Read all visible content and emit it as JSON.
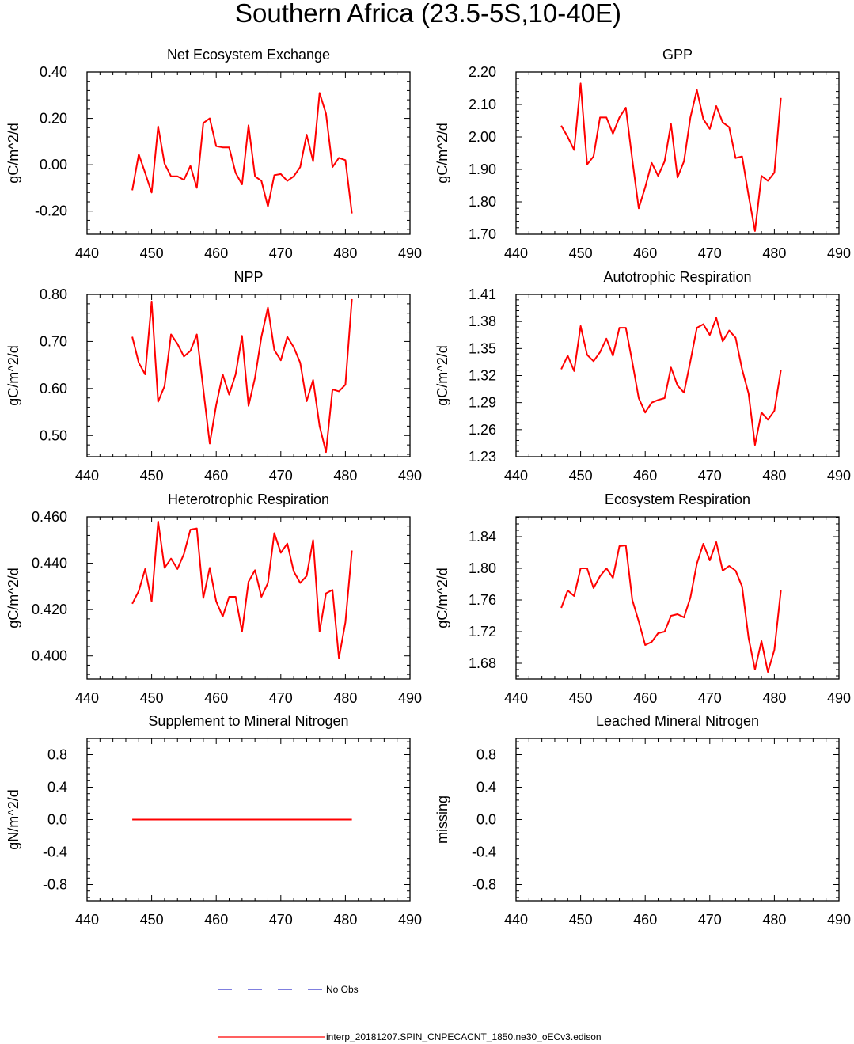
{
  "figure_title": "Southern Africa (23.5-5S,10-40E)",
  "legend": {
    "entries": [
      {
        "label": "No Obs",
        "style": "dashed",
        "color": "#3333cc"
      },
      {
        "label": "interp_20181207.SPIN_CNPECACNT_1850.ne30_oECv3.edison",
        "style": "solid",
        "color": "#ff0000"
      }
    ]
  },
  "colors": {
    "series": "#ff0000",
    "axis": "#000000",
    "obs": "#3333cc"
  },
  "chart_data": [
    {
      "type": "line",
      "title": "Net Ecosystem Exchange",
      "xlabel": "",
      "ylabel": "gC/m^2/d",
      "xlim": [
        440,
        490
      ],
      "ylim": [
        -0.3,
        0.4
      ],
      "xticks": [
        440,
        450,
        460,
        470,
        480,
        490
      ],
      "xtick_labels": [
        "440",
        "450",
        "460",
        "470",
        "480",
        "490"
      ],
      "yticks": [
        -0.2,
        0.0,
        0.2,
        0.4
      ],
      "ytick_labels": [
        "-0.20",
        "0.00",
        "0.20",
        "0.40"
      ],
      "series": [
        {
          "name": "interp_20181207.SPIN_CNPECACNT_1850.ne30_oECv3.edison",
          "x": [
            447,
            448,
            449,
            450,
            451,
            452,
            453,
            454,
            455,
            456,
            457,
            458,
            459,
            460,
            461,
            462,
            463,
            464,
            465,
            466,
            467,
            468,
            469,
            470,
            471,
            472,
            473,
            474,
            475,
            476,
            477,
            478,
            479,
            480,
            481
          ],
          "y": [
            -0.11,
            0.045,
            -0.035,
            -0.12,
            0.165,
            0.005,
            -0.05,
            -0.05,
            -0.065,
            -0.005,
            -0.1,
            0.18,
            0.2,
            0.08,
            0.075,
            0.075,
            -0.035,
            -0.085,
            0.17,
            -0.05,
            -0.07,
            -0.18,
            -0.045,
            -0.04,
            -0.07,
            -0.05,
            -0.01,
            0.13,
            0.015,
            0.31,
            0.22,
            -0.01,
            0.03,
            0.02,
            -0.21
          ]
        }
      ]
    },
    {
      "type": "line",
      "title": "GPP",
      "xlabel": "",
      "ylabel": "gC/m^2/d",
      "xlim": [
        440,
        490
      ],
      "ylim": [
        1.7,
        2.2
      ],
      "xticks": [
        440,
        450,
        460,
        470,
        480,
        490
      ],
      "xtick_labels": [
        "440",
        "450",
        "460",
        "470",
        "480",
        "490"
      ],
      "yticks": [
        1.7,
        1.8,
        1.9,
        2.0,
        2.1,
        2.2
      ],
      "ytick_labels": [
        "1.70",
        "1.80",
        "1.90",
        "2.00",
        "2.10",
        "2.20"
      ],
      "series": [
        {
          "name": "interp_20181207.SPIN_CNPECACNT_1850.ne30_oECv3.edison",
          "x": [
            447,
            448,
            449,
            450,
            451,
            452,
            453,
            454,
            455,
            456,
            457,
            458,
            459,
            460,
            461,
            462,
            463,
            464,
            465,
            466,
            467,
            468,
            469,
            470,
            471,
            472,
            473,
            474,
            475,
            476,
            477,
            478,
            479,
            480,
            481
          ],
          "y": [
            2.035,
            2.0,
            1.96,
            2.165,
            1.915,
            1.94,
            2.06,
            2.06,
            2.01,
            2.06,
            2.09,
            1.93,
            1.78,
            1.845,
            1.92,
            1.88,
            1.925,
            2.04,
            1.875,
            1.925,
            2.06,
            2.145,
            2.055,
            2.025,
            2.095,
            2.045,
            2.03,
            1.935,
            1.94,
            1.82,
            1.71,
            1.88,
            1.865,
            1.89,
            2.12
          ]
        }
      ]
    },
    {
      "type": "line",
      "title": "NPP",
      "xlabel": "",
      "ylabel": "gC/m^2/d",
      "xlim": [
        440,
        490
      ],
      "ylim": [
        0.455,
        0.8
      ],
      "xticks": [
        440,
        450,
        460,
        470,
        480,
        490
      ],
      "xtick_labels": [
        "440",
        "450",
        "460",
        "470",
        "480",
        "490"
      ],
      "yticks": [
        0.5,
        0.6,
        0.7,
        0.8
      ],
      "ytick_labels": [
        "0.50",
        "0.60",
        "0.70",
        "0.80"
      ],
      "series": [
        {
          "name": "interp_20181207.SPIN_CNPECACNT_1850.ne30_oECv3.edison",
          "x": [
            447,
            448,
            449,
            450,
            451,
            452,
            453,
            454,
            455,
            456,
            457,
            458,
            459,
            460,
            461,
            462,
            463,
            464,
            465,
            466,
            467,
            468,
            469,
            470,
            471,
            472,
            473,
            474,
            475,
            476,
            477,
            478,
            479,
            480,
            481
          ],
          "y": [
            0.71,
            0.655,
            0.63,
            0.785,
            0.572,
            0.605,
            0.715,
            0.695,
            0.668,
            0.68,
            0.715,
            0.598,
            0.483,
            0.565,
            0.63,
            0.587,
            0.63,
            0.712,
            0.563,
            0.623,
            0.71,
            0.772,
            0.682,
            0.66,
            0.71,
            0.688,
            0.655,
            0.573,
            0.618,
            0.52,
            0.465,
            0.598,
            0.594,
            0.608,
            0.79
          ]
        }
      ]
    },
    {
      "type": "line",
      "title": "Autotrophic Respiration",
      "xlabel": "",
      "ylabel": "gC/m^2/d",
      "xlim": [
        440,
        490
      ],
      "ylim": [
        1.23,
        1.41
      ],
      "xticks": [
        440,
        450,
        460,
        470,
        480,
        490
      ],
      "xtick_labels": [
        "440",
        "450",
        "460",
        "470",
        "480",
        "490"
      ],
      "yticks": [
        1.23,
        1.26,
        1.29,
        1.32,
        1.35,
        1.38,
        1.41
      ],
      "ytick_labels": [
        "1.23",
        "1.26",
        "1.29",
        "1.32",
        "1.35",
        "1.38",
        "1.41"
      ],
      "series": [
        {
          "name": "interp_20181207.SPIN_CNPECACNT_1850.ne30_oECv3.edison",
          "x": [
            447,
            448,
            449,
            450,
            451,
            452,
            453,
            454,
            455,
            456,
            457,
            458,
            459,
            460,
            461,
            462,
            463,
            464,
            465,
            466,
            467,
            468,
            469,
            470,
            471,
            472,
            473,
            474,
            475,
            476,
            477,
            478,
            479,
            480,
            481
          ],
          "y": [
            1.327,
            1.342,
            1.325,
            1.375,
            1.343,
            1.336,
            1.346,
            1.361,
            1.342,
            1.373,
            1.373,
            1.335,
            1.295,
            1.279,
            1.29,
            1.293,
            1.295,
            1.329,
            1.309,
            1.301,
            1.336,
            1.373,
            1.377,
            1.365,
            1.384,
            1.358,
            1.37,
            1.362,
            1.327,
            1.3,
            1.243,
            1.279,
            1.271,
            1.281,
            1.326
          ]
        }
      ]
    },
    {
      "type": "line",
      "title": "Heterotrophic Respiration",
      "xlabel": "",
      "ylabel": "gC/m^2/d",
      "xlim": [
        440,
        490
      ],
      "ylim": [
        0.39,
        0.46
      ],
      "xticks": [
        440,
        450,
        460,
        470,
        480,
        490
      ],
      "xtick_labels": [
        "440",
        "450",
        "460",
        "470",
        "480",
        "490"
      ],
      "yticks": [
        0.4,
        0.42,
        0.44,
        0.46
      ],
      "ytick_labels": [
        "0.400",
        "0.420",
        "0.440",
        "0.460"
      ],
      "series": [
        {
          "name": "interp_20181207.SPIN_CNPECACNT_1850.ne30_oECv3.edison",
          "x": [
            447,
            448,
            449,
            450,
            451,
            452,
            453,
            454,
            455,
            456,
            457,
            458,
            459,
            460,
            461,
            462,
            463,
            464,
            465,
            466,
            467,
            468,
            469,
            470,
            471,
            472,
            473,
            474,
            475,
            476,
            477,
            478,
            479,
            480,
            481
          ],
          "y": [
            0.4225,
            0.428,
            0.4375,
            0.4235,
            0.458,
            0.438,
            0.442,
            0.4375,
            0.444,
            0.4545,
            0.455,
            0.425,
            0.438,
            0.4235,
            0.417,
            0.4255,
            0.4255,
            0.4105,
            0.432,
            0.437,
            0.4255,
            0.4315,
            0.453,
            0.4445,
            0.4485,
            0.4365,
            0.4315,
            0.4345,
            0.45,
            0.4105,
            0.427,
            0.4285,
            0.399,
            0.4145,
            0.4455
          ]
        }
      ]
    },
    {
      "type": "line",
      "title": "Ecosystem Respiration",
      "xlabel": "",
      "ylabel": "gC/m^2/d",
      "xlim": [
        440,
        490
      ],
      "ylim": [
        1.66,
        1.865
      ],
      "xticks": [
        440,
        450,
        460,
        470,
        480,
        490
      ],
      "xtick_labels": [
        "440",
        "450",
        "460",
        "470",
        "480",
        "490"
      ],
      "yticks": [
        1.68,
        1.72,
        1.76,
        1.8,
        1.84
      ],
      "ytick_labels": [
        "1.68",
        "1.72",
        "1.76",
        "1.80",
        "1.84"
      ],
      "series": [
        {
          "name": "interp_20181207.SPIN_CNPECACNT_1850.ne30_oECv3.edison",
          "x": [
            447,
            448,
            449,
            450,
            451,
            452,
            453,
            454,
            455,
            456,
            457,
            458,
            459,
            460,
            461,
            462,
            463,
            464,
            465,
            466,
            467,
            468,
            469,
            470,
            471,
            472,
            473,
            474,
            475,
            476,
            477,
            478,
            479,
            480,
            481
          ],
          "y": [
            1.75,
            1.772,
            1.765,
            1.8,
            1.8,
            1.775,
            1.79,
            1.8,
            1.788,
            1.828,
            1.829,
            1.76,
            1.733,
            1.703,
            1.707,
            1.718,
            1.72,
            1.74,
            1.742,
            1.738,
            1.763,
            1.806,
            1.831,
            1.81,
            1.833,
            1.797,
            1.803,
            1.797,
            1.777,
            1.712,
            1.672,
            1.708,
            1.669,
            1.697,
            1.772
          ]
        }
      ]
    },
    {
      "type": "line",
      "title": "Supplement to Mineral Nitrogen",
      "xlabel": "",
      "ylabel": "gN/m^2/d",
      "xlim": [
        440,
        490
      ],
      "ylim": [
        -1.0,
        1.0
      ],
      "xticks": [
        440,
        450,
        460,
        470,
        480,
        490
      ],
      "xtick_labels": [
        "440",
        "450",
        "460",
        "470",
        "480",
        "490"
      ],
      "yticks": [
        -0.8,
        -0.4,
        0.0,
        0.4,
        0.8
      ],
      "ytick_labels": [
        "-0.8",
        "-0.4",
        "0.0",
        "0.4",
        "0.8"
      ],
      "series": [
        {
          "name": "interp_20181207.SPIN_CNPECACNT_1850.ne30_oECv3.edison",
          "x": [
            447,
            481
          ],
          "y": [
            0.0,
            0.0
          ]
        }
      ]
    },
    {
      "type": "line",
      "title": "Leached Mineral Nitrogen",
      "xlabel": "",
      "ylabel": "missing",
      "xlim": [
        440,
        490
      ],
      "ylim": [
        -1.0,
        1.0
      ],
      "xticks": [
        440,
        450,
        460,
        470,
        480,
        490
      ],
      "xtick_labels": [
        "440",
        "450",
        "460",
        "470",
        "480",
        "490"
      ],
      "yticks": [
        -0.8,
        -0.4,
        0.0,
        0.4,
        0.8
      ],
      "ytick_labels": [
        "-0.8",
        "-0.4",
        "0.0",
        "0.4",
        "0.8"
      ],
      "series": []
    }
  ]
}
